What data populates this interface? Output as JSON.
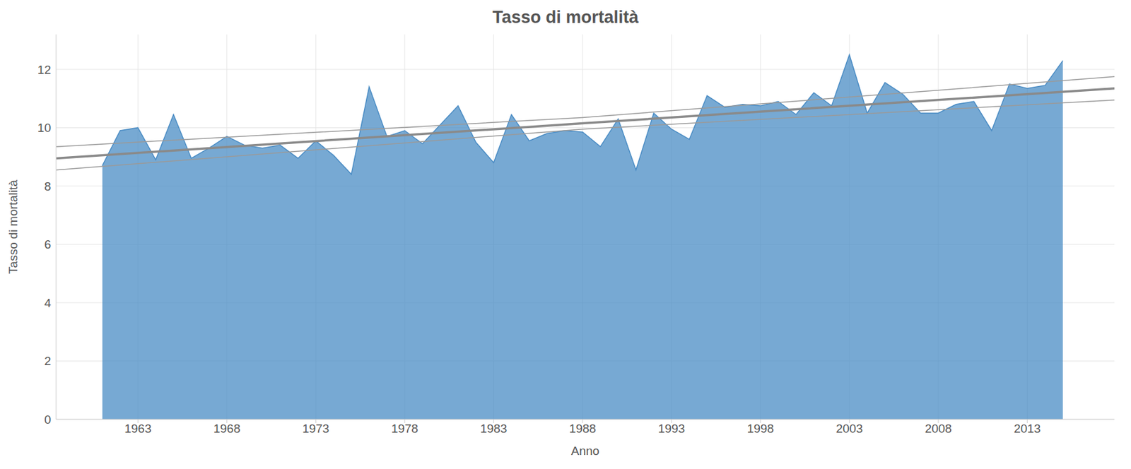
{
  "chart_data": {
    "type": "area",
    "title": "Tasso di mortalità",
    "x_label": "Anno",
    "y_label": "Tasso di mortalità",
    "x": [
      1961,
      1962,
      1963,
      1964,
      1965,
      1966,
      1967,
      1968,
      1969,
      1970,
      1971,
      1972,
      1973,
      1974,
      1975,
      1976,
      1977,
      1978,
      1979,
      1980,
      1981,
      1982,
      1983,
      1984,
      1985,
      1986,
      1987,
      1988,
      1989,
      1990,
      1991,
      1992,
      1993,
      1994,
      1995,
      1996,
      1997,
      1998,
      1999,
      2000,
      2001,
      2002,
      2003,
      2004,
      2005,
      2006,
      2007,
      2008,
      2009,
      2010,
      2011,
      2012,
      2013,
      2014,
      2015
    ],
    "series": [
      {
        "name": "Tasso di mortalità",
        "type": "area",
        "color": "#4a8cc4",
        "values": [
          8.7,
          9.9,
          10.0,
          8.9,
          10.45,
          8.95,
          9.3,
          9.7,
          9.4,
          9.3,
          9.4,
          8.95,
          9.55,
          9.05,
          8.4,
          11.4,
          9.7,
          9.9,
          9.45,
          10.1,
          10.75,
          9.5,
          8.8,
          10.45,
          9.55,
          9.8,
          9.9,
          9.85,
          9.35,
          10.3,
          8.55,
          10.5,
          9.95,
          9.6,
          11.1,
          10.7,
          10.8,
          10.75,
          10.9,
          10.45,
          11.2,
          10.75,
          12.5,
          10.5,
          11.55,
          11.15,
          10.5,
          10.5,
          10.8,
          10.9,
          9.9,
          11.5,
          11.35,
          11.45,
          12.3
        ]
      },
      {
        "type": "line",
        "line_style": "solid",
        "color": "#8a8a8a",
        "x": [
          1958.4,
          1988,
          2017.9
        ],
        "values": [
          8.95,
          10.15,
          11.35
        ]
      },
      {
        "type": "line",
        "line_style": "thin",
        "color": "#9a9a9a",
        "x": [
          1958.4,
          1988,
          2017.9
        ],
        "values": [
          9.35,
          10.35,
          11.75
        ]
      },
      {
        "type": "line",
        "line_style": "thin",
        "color": "#9a9a9a",
        "x": [
          1958.4,
          1988,
          2017.9
        ],
        "values": [
          8.55,
          9.95,
          10.95
        ]
      }
    ],
    "xlim": [
      1958.4,
      2017.9
    ],
    "ylim": [
      0,
      13.2
    ],
    "xticks": [
      1963,
      1968,
      1973,
      1978,
      1983,
      1988,
      1993,
      1998,
      2003,
      2008,
      2013
    ],
    "yticks": [
      0,
      2,
      4,
      6,
      8,
      10,
      12
    ],
    "grid": true
  }
}
